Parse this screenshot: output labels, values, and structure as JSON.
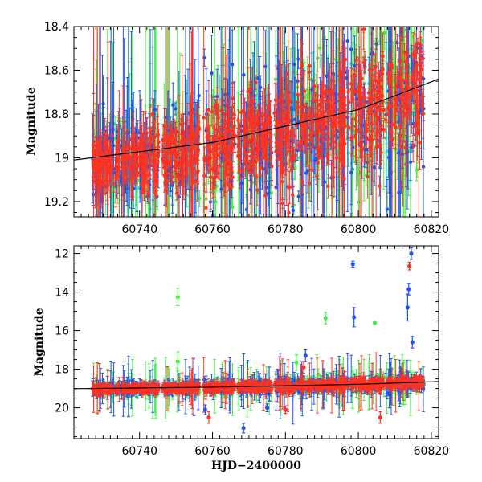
{
  "chart_data": [
    {
      "type": "scatter",
      "title": "",
      "xlabel": "",
      "ylabel": "Magnitude",
      "xlim": [
        60722,
        60822
      ],
      "ylim": [
        19.27,
        18.4
      ],
      "y_inverted": true,
      "grid": false,
      "xticks": [
        60740,
        60760,
        60780,
        60800,
        60820
      ],
      "yticks": [
        18.4,
        18.6,
        18.8,
        19,
        19.2
      ],
      "colors": {
        "green": "#44ee44",
        "blue": "#2255ee",
        "red": "#ff3322",
        "model": "#000000"
      },
      "trend_curve": {
        "x": [
          60722,
          60760,
          60800,
          60822
        ],
        "y": [
          19.01,
          18.93,
          18.78,
          18.64
        ]
      },
      "series": [
        {
          "color": "green",
          "x_range": [
            60727,
            60818
          ]
        },
        {
          "color": "blue",
          "x_range": [
            60727,
            60818
          ]
        },
        {
          "color": "red",
          "x_range": [
            60727,
            60818
          ]
        }
      ]
    },
    {
      "type": "scatter",
      "title": "",
      "xlabel": "HJD−2400000",
      "ylabel": "Magnitude",
      "xlim": [
        60722,
        60822
      ],
      "ylim": [
        21.6,
        11.6
      ],
      "y_inverted": true,
      "grid": false,
      "xticks": [
        60740,
        60760,
        60780,
        60800,
        60820
      ],
      "yticks": [
        12,
        14,
        16,
        18,
        20
      ],
      "trend_curve": {
        "x": [
          60722,
          60760,
          60800,
          60822
        ],
        "y": [
          19.01,
          18.93,
          18.78,
          18.64
        ]
      },
      "outliers": [
        {
          "color": "green",
          "x": 60750.5,
          "y": 14.25,
          "err": 0.45
        },
        {
          "color": "green",
          "x": 60750.5,
          "y": 17.6,
          "err": 0.5
        },
        {
          "color": "green",
          "x": 60791,
          "y": 15.35,
          "err": 0.3
        },
        {
          "color": "green",
          "x": 60804.5,
          "y": 15.6,
          "err": 0.05
        },
        {
          "color": "green",
          "x": 60783,
          "y": 17.65,
          "err": 0.4
        },
        {
          "color": "blue",
          "x": 60798.5,
          "y": 12.55,
          "err": 0.15
        },
        {
          "color": "blue",
          "x": 60798.8,
          "y": 15.3,
          "err": 0.5
        },
        {
          "color": "blue",
          "x": 60813.5,
          "y": 14.8,
          "err": 0.7
        },
        {
          "color": "blue",
          "x": 60814.5,
          "y": 12.0,
          "err": 0.3
        },
        {
          "color": "blue",
          "x": 60813.8,
          "y": 13.85,
          "err": 0.3
        },
        {
          "color": "blue",
          "x": 60814.8,
          "y": 16.6,
          "err": 0.3
        },
        {
          "color": "blue",
          "x": 60785.5,
          "y": 17.3,
          "err": 0.3
        },
        {
          "color": "blue",
          "x": 60768.5,
          "y": 21.05,
          "err": 0.25
        },
        {
          "color": "blue",
          "x": 60758,
          "y": 20.1,
          "err": 0.25
        },
        {
          "color": "blue",
          "x": 60775,
          "y": 20.0,
          "err": 0.2
        },
        {
          "color": "red",
          "x": 60814,
          "y": 12.65,
          "err": 0.2
        },
        {
          "color": "red",
          "x": 60806,
          "y": 20.5,
          "err": 0.3
        },
        {
          "color": "red",
          "x": 60759,
          "y": 20.5,
          "err": 0.3
        },
        {
          "color": "red",
          "x": 60780,
          "y": 20.1,
          "err": 0.2
        },
        {
          "color": "red",
          "x": 60785,
          "y": 17.9,
          "err": 0.3
        }
      ]
    }
  ]
}
